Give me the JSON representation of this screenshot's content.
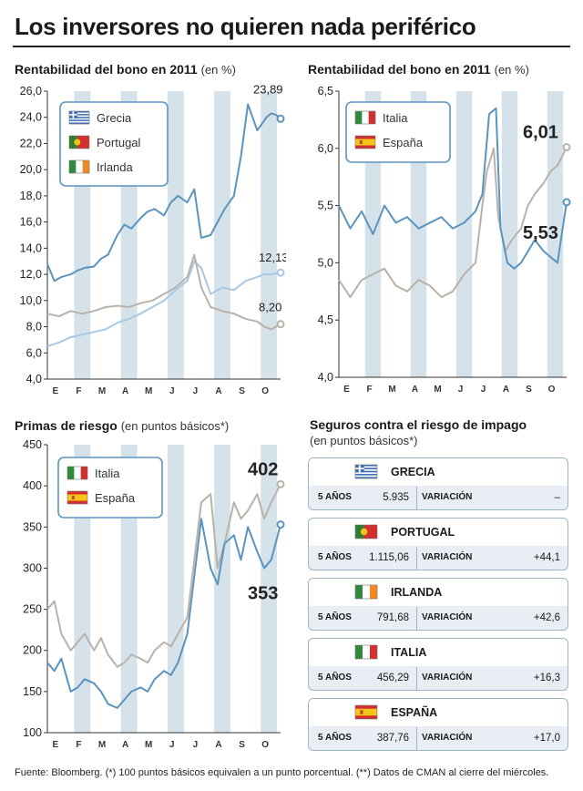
{
  "header": {
    "title": "Los inversores no quieren nada periférico"
  },
  "months": [
    "E",
    "F",
    "M",
    "A",
    "M",
    "J",
    "J",
    "A",
    "S",
    "O"
  ],
  "colors": {
    "grecia": "#5a94bf",
    "portugal": "#5a94bf",
    "irlanda": "#b9b2aa",
    "italia": "#b9b2aa",
    "espana": "#5a94bf",
    "portugal_light": "#a9c9e3",
    "stripe": "#d6e2ea"
  },
  "chart_data": [
    {
      "type": "line",
      "title": "Rentabilidad del bono en 2011",
      "subtitle": "(en %)",
      "ylim": [
        4,
        26
      ],
      "yticks": [
        "4,0",
        "6,0",
        "8,0",
        "10,0",
        "12,0",
        "14,0",
        "16,0",
        "18,0",
        "20,0",
        "22,0",
        "24,0",
        "26,0"
      ],
      "legend": [
        "Grecia",
        "Portugal",
        "Irlanda"
      ],
      "end_labels": [
        "23,89",
        "12,13",
        "8,20"
      ],
      "series": [
        {
          "name": "Grecia",
          "x": [
            0,
            0.3,
            0.6,
            1,
            1.3,
            1.6,
            2,
            2.3,
            2.6,
            3,
            3.3,
            3.6,
            4,
            4.3,
            4.6,
            5,
            5.3,
            5.6,
            6,
            6.3,
            6.6,
            7,
            7.3,
            7.6,
            8,
            8.3,
            8.6,
            9,
            9.2,
            9.4,
            9.6,
            9.8,
            10
          ],
          "values": [
            12.8,
            11.5,
            11.8,
            12.0,
            12.3,
            12.5,
            12.6,
            13.2,
            13.5,
            15.0,
            15.8,
            15.5,
            16.3,
            16.8,
            17.0,
            16.5,
            17.5,
            18.0,
            17.5,
            18.5,
            14.8,
            15.0,
            16.0,
            17.0,
            18.0,
            21.0,
            25.0,
            23.0,
            23.5,
            24.0,
            24.3,
            24.2,
            23.89
          ]
        },
        {
          "name": "Portugal",
          "x": [
            0,
            0.5,
            1,
            1.5,
            2,
            2.5,
            3,
            3.5,
            4,
            4.5,
            5,
            5.5,
            6,
            6.3,
            6.6,
            7,
            7.5,
            8,
            8.5,
            9,
            9.3,
            9.6,
            10
          ],
          "values": [
            6.5,
            6.8,
            7.2,
            7.4,
            7.6,
            7.8,
            8.3,
            8.6,
            9.0,
            9.5,
            10.0,
            10.8,
            11.5,
            13.0,
            12.5,
            10.5,
            11.0,
            10.8,
            11.5,
            11.8,
            12.0,
            12.0,
            12.13
          ]
        },
        {
          "name": "Irlanda",
          "x": [
            0,
            0.5,
            1,
            1.5,
            2,
            2.5,
            3,
            3.5,
            4,
            4.5,
            5,
            5.5,
            6,
            6.3,
            6.6,
            7,
            7.5,
            8,
            8.5,
            9,
            9.3,
            9.6,
            10
          ],
          "values": [
            9.0,
            8.8,
            9.2,
            9.0,
            9.2,
            9.5,
            9.6,
            9.5,
            9.8,
            10.0,
            10.5,
            11.0,
            11.8,
            13.5,
            11.0,
            9.5,
            9.2,
            9.0,
            8.6,
            8.4,
            8.0,
            7.8,
            8.2
          ]
        }
      ]
    },
    {
      "type": "line",
      "title": "Rentabilidad del bono en 2011",
      "subtitle": "(en %)",
      "ylim": [
        4.0,
        6.5
      ],
      "yticks": [
        "4,0",
        "4,5",
        "5,0",
        "5,5",
        "6,0",
        "6,5"
      ],
      "legend": [
        "Italia",
        "España"
      ],
      "end_labels": [
        "6,01",
        "5,53"
      ],
      "series": [
        {
          "name": "Italia",
          "x": [
            0,
            0.5,
            1,
            1.5,
            2,
            2.5,
            3,
            3.5,
            4,
            4.5,
            5,
            5.5,
            6,
            6.3,
            6.5,
            6.8,
            7,
            7.3,
            7.6,
            8,
            8.3,
            8.6,
            9,
            9.3,
            9.6,
            10
          ],
          "values": [
            4.85,
            4.7,
            4.85,
            4.9,
            4.95,
            4.8,
            4.75,
            4.85,
            4.8,
            4.7,
            4.75,
            4.9,
            5.0,
            5.5,
            5.8,
            6.0,
            5.4,
            5.1,
            5.2,
            5.3,
            5.5,
            5.6,
            5.7,
            5.8,
            5.85,
            6.01
          ]
        },
        {
          "name": "España",
          "x": [
            0,
            0.5,
            1,
            1.5,
            2,
            2.5,
            3,
            3.5,
            4,
            4.5,
            5,
            5.5,
            6,
            6.3,
            6.6,
            6.9,
            7.1,
            7.4,
            7.7,
            8,
            8.3,
            8.6,
            9,
            9.3,
            9.6,
            10
          ],
          "values": [
            5.5,
            5.3,
            5.45,
            5.25,
            5.5,
            5.35,
            5.4,
            5.3,
            5.35,
            5.4,
            5.3,
            5.35,
            5.45,
            5.6,
            6.3,
            6.35,
            5.3,
            5.0,
            4.95,
            5.0,
            5.1,
            5.2,
            5.1,
            5.05,
            5.0,
            5.53
          ]
        }
      ]
    },
    {
      "type": "line",
      "title": "Primas de riesgo",
      "subtitle": "(en puntos básicos*)",
      "ylim": [
        100,
        450
      ],
      "yticks": [
        "100",
        "150",
        "200",
        "250",
        "300",
        "350",
        "400",
        "450"
      ],
      "legend": [
        "Italia",
        "España"
      ],
      "end_labels": [
        "402",
        "353"
      ],
      "series": [
        {
          "name": "Italia",
          "x": [
            0,
            0.3,
            0.6,
            1,
            1.3,
            1.6,
            2,
            2.3,
            2.6,
            3,
            3.3,
            3.6,
            4,
            4.3,
            4.6,
            5,
            5.3,
            5.6,
            6,
            6.3,
            6.6,
            7,
            7.3,
            7.6,
            8,
            8.3,
            8.6,
            9,
            9.3,
            9.6,
            10
          ],
          "values": [
            250,
            260,
            220,
            200,
            210,
            220,
            200,
            215,
            195,
            180,
            185,
            195,
            190,
            185,
            200,
            210,
            205,
            220,
            240,
            310,
            380,
            390,
            300,
            330,
            380,
            360,
            370,
            390,
            360,
            380,
            402
          ]
        },
        {
          "name": "España",
          "x": [
            0,
            0.3,
            0.6,
            1,
            1.3,
            1.6,
            2,
            2.3,
            2.6,
            3,
            3.3,
            3.6,
            4,
            4.3,
            4.6,
            5,
            5.3,
            5.6,
            6,
            6.3,
            6.6,
            7,
            7.3,
            7.6,
            8,
            8.3,
            8.6,
            9,
            9.3,
            9.6,
            10
          ],
          "values": [
            185,
            175,
            190,
            150,
            155,
            165,
            160,
            150,
            135,
            130,
            140,
            150,
            155,
            150,
            165,
            175,
            170,
            185,
            220,
            290,
            360,
            300,
            280,
            330,
            340,
            310,
            350,
            320,
            300,
            310,
            353
          ]
        }
      ]
    }
  ],
  "cds": {
    "title": "Seguros contra el riesgo de impago",
    "subtitle": "(en puntos básicos*)",
    "label_5y": "5 AÑOS",
    "label_var": "VARIACIÓN",
    "items": [
      {
        "country": "GRECIA",
        "value": "5.935",
        "variation": "–",
        "flag": "gr"
      },
      {
        "country": "PORTUGAL",
        "value": "1.115,06",
        "variation": "+44,1",
        "flag": "pt"
      },
      {
        "country": "IRLANDA",
        "value": "791,68",
        "variation": "+42,6",
        "flag": "ie"
      },
      {
        "country": "ITALIA",
        "value": "456,29",
        "variation": "+16,3",
        "flag": "it"
      },
      {
        "country": "ESPAÑA",
        "value": "387,76",
        "variation": "+17,0",
        "flag": "es"
      }
    ]
  },
  "footer": {
    "text": "Fuente: Bloomberg. (*) 100 puntos básicos equivalen a un punto porcentual. (**) Datos de  CMAN al cierre del miércoles."
  }
}
